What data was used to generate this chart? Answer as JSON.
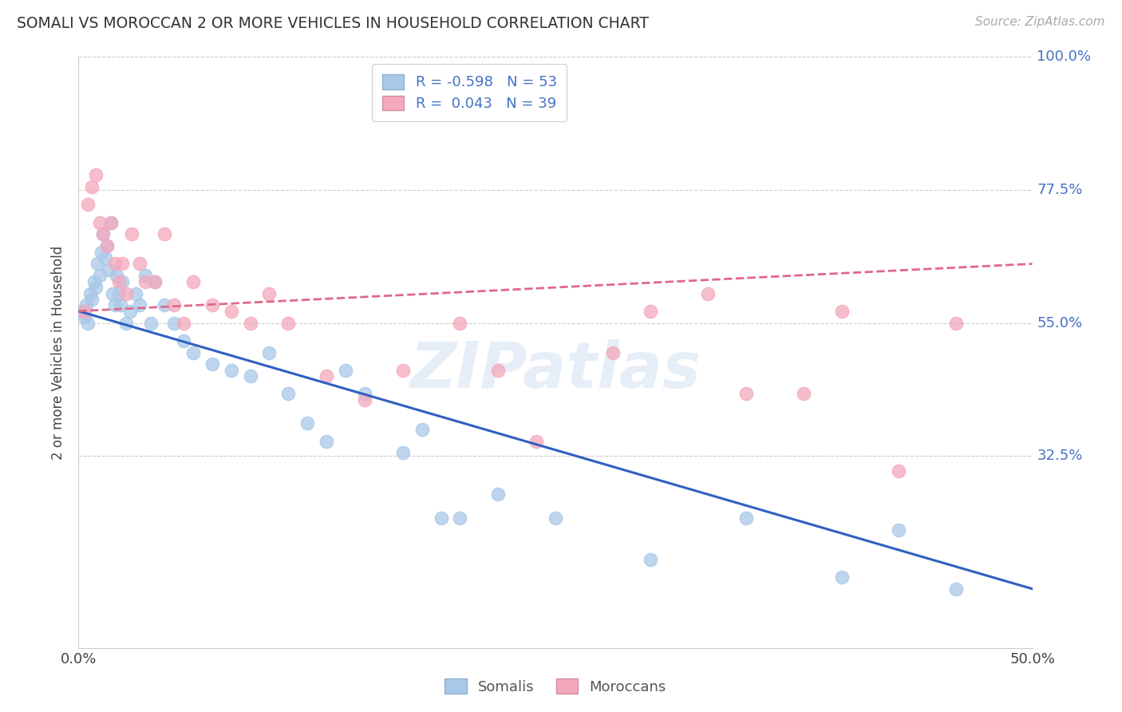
{
  "title": "SOMALI VS MOROCCAN 2 OR MORE VEHICLES IN HOUSEHOLD CORRELATION CHART",
  "source": "Source: ZipAtlas.com",
  "ylabel": "2 or more Vehicles in Household",
  "xlim": [
    0.0,
    50.0
  ],
  "ylim": [
    0.0,
    100.0
  ],
  "yticks": [
    32.5,
    55.0,
    77.5,
    100.0
  ],
  "ytick_labels": [
    "32.5%",
    "55.0%",
    "77.5%",
    "100.0%"
  ],
  "watermark": "ZIPatlas",
  "somali_R": "-0.598",
  "somali_N": "53",
  "moroccan_R": "0.043",
  "moroccan_N": "39",
  "somali_color": "#a8c8e8",
  "moroccan_color": "#f4a8bc",
  "somali_line_color": "#3060c0",
  "moroccan_line_color": "#e06888",
  "somali_x": [
    0.2,
    0.3,
    0.4,
    0.5,
    0.6,
    0.7,
    0.8,
    0.9,
    1.0,
    1.1,
    1.2,
    1.3,
    1.4,
    1.5,
    1.6,
    1.7,
    1.8,
    1.9,
    2.0,
    2.1,
    2.2,
    2.3,
    2.5,
    2.7,
    3.0,
    3.2,
    3.5,
    3.8,
    4.0,
    4.5,
    5.0,
    5.5,
    6.0,
    7.0,
    8.0,
    9.0,
    10.0,
    11.0,
    12.0,
    13.0,
    14.0,
    15.0,
    17.0,
    18.0,
    19.0,
    20.0,
    22.0,
    25.0,
    30.0,
    35.0,
    40.0,
    43.0,
    46.0
  ],
  "somali_y": [
    57.0,
    56.0,
    58.0,
    55.0,
    60.0,
    59.0,
    62.0,
    61.0,
    65.0,
    63.0,
    67.0,
    70.0,
    66.0,
    68.0,
    64.0,
    72.0,
    60.0,
    58.0,
    63.0,
    60.0,
    58.0,
    62.0,
    55.0,
    57.0,
    60.0,
    58.0,
    63.0,
    55.0,
    62.0,
    58.0,
    55.0,
    52.0,
    50.0,
    48.0,
    47.0,
    46.0,
    50.0,
    43.0,
    38.0,
    35.0,
    47.0,
    43.0,
    33.0,
    37.0,
    22.0,
    22.0,
    26.0,
    22.0,
    15.0,
    22.0,
    12.0,
    20.0,
    10.0
  ],
  "moroccan_x": [
    0.3,
    0.5,
    0.7,
    0.9,
    1.1,
    1.3,
    1.5,
    1.7,
    1.9,
    2.1,
    2.3,
    2.5,
    2.8,
    3.2,
    3.5,
    4.0,
    4.5,
    5.0,
    5.5,
    6.0,
    7.0,
    8.0,
    9.0,
    10.0,
    11.0,
    13.0,
    15.0,
    17.0,
    20.0,
    22.0,
    24.0,
    28.0,
    30.0,
    33.0,
    35.0,
    38.0,
    40.0,
    43.0,
    46.0
  ],
  "moroccan_y": [
    57.0,
    75.0,
    78.0,
    80.0,
    72.0,
    70.0,
    68.0,
    72.0,
    65.0,
    62.0,
    65.0,
    60.0,
    70.0,
    65.0,
    62.0,
    62.0,
    70.0,
    58.0,
    55.0,
    62.0,
    58.0,
    57.0,
    55.0,
    60.0,
    55.0,
    46.0,
    42.0,
    47.0,
    55.0,
    47.0,
    35.0,
    50.0,
    57.0,
    60.0,
    43.0,
    43.0,
    57.0,
    30.0,
    55.0
  ],
  "somali_line_y0": 57.0,
  "somali_line_y1": 10.0,
  "moroccan_line_y0": 57.0,
  "moroccan_line_y1": 65.0
}
